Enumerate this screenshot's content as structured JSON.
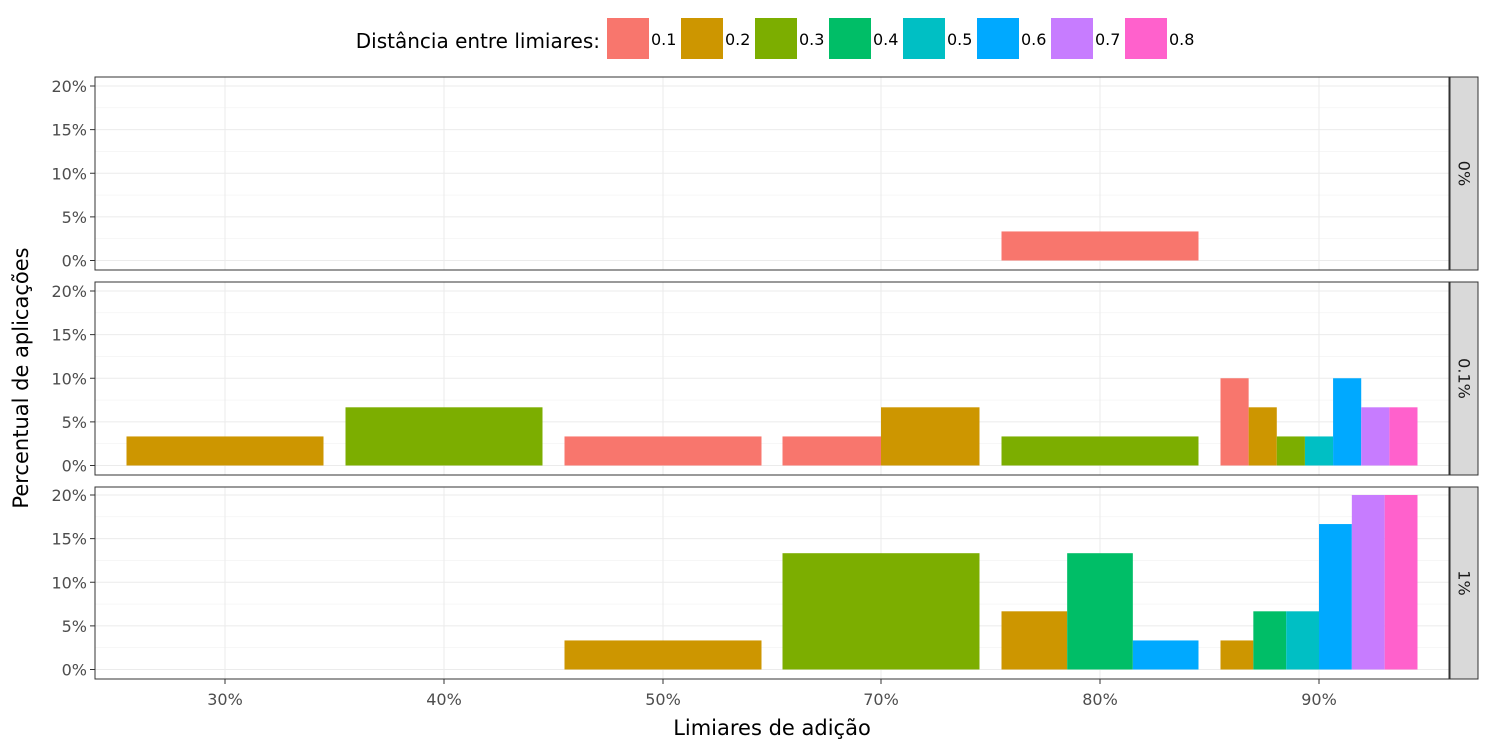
{
  "chart_data": {
    "type": "bar",
    "xlabel": "Limiares de adição",
    "ylabel": "Percentual de aplicações",
    "legend_title": "Distância entre limiares:",
    "legend_position": "top",
    "grid": true,
    "x_categories": [
      "30%",
      "40%",
      "50%",
      "70%",
      "80%",
      "90%"
    ],
    "y_ticks": [
      "0%",
      "5%",
      "10%",
      "15%",
      "20%"
    ],
    "ylim": [
      0,
      20
    ],
    "series": [
      {
        "name": "0.1",
        "color": "#F8766D"
      },
      {
        "name": "0.2",
        "color": "#CD9600"
      },
      {
        "name": "0.3",
        "color": "#7CAE00"
      },
      {
        "name": "0.4",
        "color": "#00BE67"
      },
      {
        "name": "0.5",
        "color": "#00BFC4"
      },
      {
        "name": "0.6",
        "color": "#00A9FF"
      },
      {
        "name": "0.7",
        "color": "#C77CFF"
      },
      {
        "name": "0.8",
        "color": "#FF61CC"
      }
    ],
    "panels": [
      {
        "label": "0%",
        "bars": [
          {
            "x": "80%",
            "series": "0.1",
            "value": 3.33
          }
        ]
      },
      {
        "label": "0.1%",
        "bars": [
          {
            "x": "30%",
            "series": "0.2",
            "value": 3.33
          },
          {
            "x": "40%",
            "series": "0.3",
            "value": 6.67
          },
          {
            "x": "50%",
            "series": "0.1",
            "value": 3.33
          },
          {
            "x": "70%",
            "series": "0.1",
            "value": 3.33
          },
          {
            "x": "70%",
            "series": "0.2",
            "value": 6.67
          },
          {
            "x": "80%",
            "series": "0.3",
            "value": 3.33
          },
          {
            "x": "90%",
            "series": "0.1",
            "value": 10
          },
          {
            "x": "90%",
            "series": "0.2",
            "value": 6.67
          },
          {
            "x": "90%",
            "series": "0.3",
            "value": 3.33
          },
          {
            "x": "90%",
            "series": "0.5",
            "value": 3.33
          },
          {
            "x": "90%",
            "series": "0.6",
            "value": 10
          },
          {
            "x": "90%",
            "series": "0.7",
            "value": 6.67
          },
          {
            "x": "90%",
            "series": "0.8",
            "value": 6.67
          }
        ]
      },
      {
        "label": "1%",
        "bars": [
          {
            "x": "50%",
            "series": "0.2",
            "value": 3.33
          },
          {
            "x": "70%",
            "series": "0.3",
            "value": 13.33
          },
          {
            "x": "80%",
            "series": "0.2",
            "value": 6.67
          },
          {
            "x": "80%",
            "series": "0.4",
            "value": 13.33
          },
          {
            "x": "80%",
            "series": "0.6",
            "value": 3.33
          },
          {
            "x": "90%",
            "series": "0.2",
            "value": 3.33
          },
          {
            "x": "90%",
            "series": "0.4",
            "value": 6.67
          },
          {
            "x": "90%",
            "series": "0.5",
            "value": 6.67
          },
          {
            "x": "90%",
            "series": "0.6",
            "value": 16.67
          },
          {
            "x": "90%",
            "series": "0.7",
            "value": 20
          },
          {
            "x": "90%",
            "series": "0.8",
            "value": 20
          }
        ]
      }
    ]
  }
}
